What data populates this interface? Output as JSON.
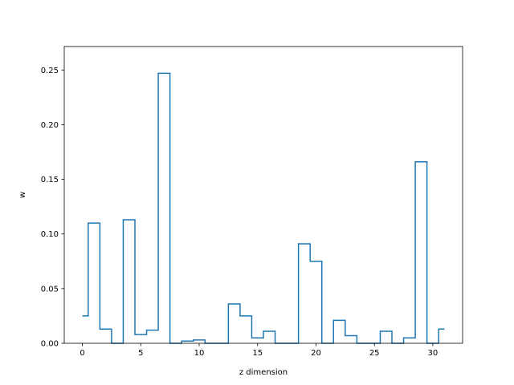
{
  "chart_data": {
    "type": "line",
    "style": "step",
    "title": "",
    "xlabel": "z dimension",
    "ylabel": "w",
    "xlim": [
      -1.55,
      32.55
    ],
    "ylim": [
      0,
      0.2715
    ],
    "grid": false,
    "x_ticks": [
      0,
      5,
      10,
      15,
      20,
      25,
      30
    ],
    "x_tick_labels": [
      "0",
      "5",
      "10",
      "15",
      "20",
      "25",
      "30"
    ],
    "y_ticks": [
      0.0,
      0.05,
      0.1,
      0.15,
      0.2,
      0.25
    ],
    "y_tick_labels": [
      "0.00",
      "0.05",
      "0.10",
      "0.15",
      "0.20",
      "0.25"
    ],
    "series": [
      {
        "color": "#1f77b4",
        "x": [
          0,
          1,
          2,
          3,
          4,
          5,
          6,
          7,
          8,
          9,
          10,
          11,
          12,
          13,
          14,
          15,
          16,
          17,
          18,
          19,
          20,
          21,
          22,
          23,
          24,
          25,
          26,
          27,
          28,
          29,
          30,
          31
        ],
        "values": [
          0.025,
          0.11,
          0.013,
          0.0,
          0.113,
          0.008,
          0.012,
          0.247,
          0.0,
          0.002,
          0.003,
          0.0,
          0.0,
          0.036,
          0.025,
          0.005,
          0.011,
          0.0,
          0.0,
          0.091,
          0.075,
          0.0,
          0.021,
          0.007,
          0.0,
          0.0,
          0.011,
          0.0,
          0.005,
          0.166,
          0.0,
          0.013
        ]
      }
    ]
  }
}
